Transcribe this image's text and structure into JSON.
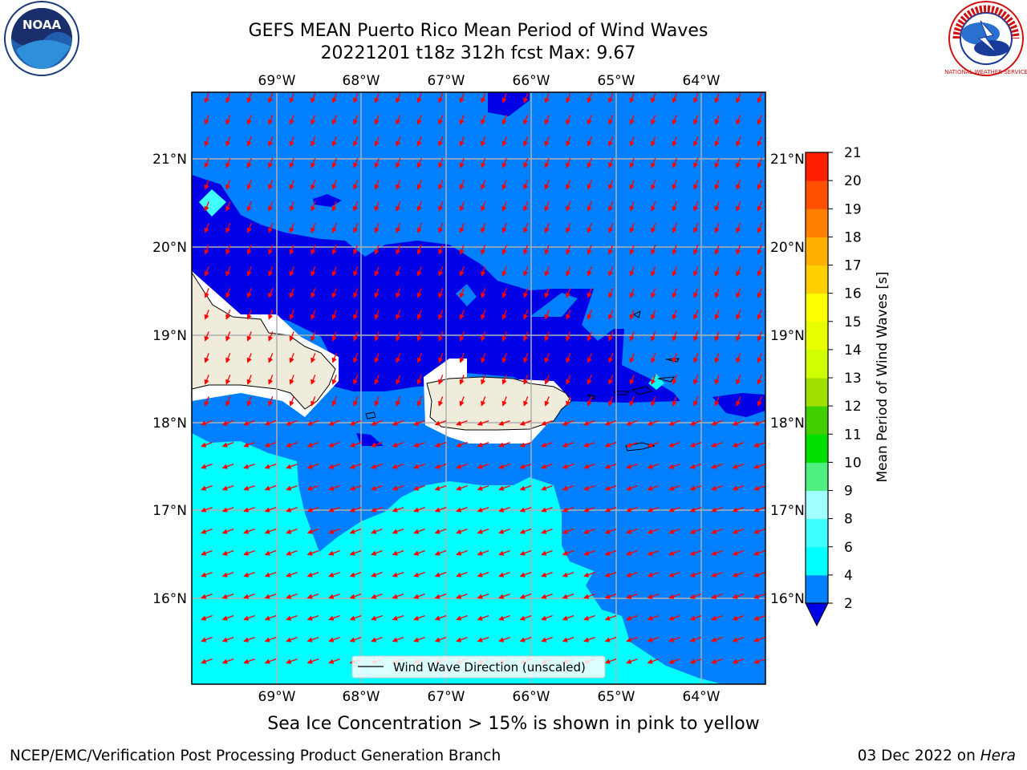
{
  "header": {
    "title_line1": "GEFS MEAN Puerto Rico Mean Period of Wind Waves",
    "title_line2": "20221201 t18z 312h fcst   Max: 9.67"
  },
  "subtitle": "Sea Ice Concentration > 15% is shown in pink to yellow",
  "footer": {
    "left": "NCEP/EMC/Verification Post Processing Product Generation Branch",
    "date": "03 Dec 2022 on ",
    "machine": "Hera"
  },
  "logos": {
    "left": {
      "icon": "noaa-logo-icon",
      "text": "NOAA"
    },
    "right": {
      "icon": "nws-logo-icon",
      "text": "NATIONAL WEATHER SERVICE"
    }
  },
  "map": {
    "lon_labels": [
      "69°W",
      "68°W",
      "67°W",
      "66°W",
      "65°W",
      "64°W"
    ],
    "lat_labels": [
      "21°N",
      "20°N",
      "19°N",
      "18°N",
      "17°N",
      "16°N"
    ],
    "lon_range": [
      -70.0,
      -63.25
    ],
    "lat_range": [
      15.0,
      21.75
    ],
    "legend_label": "Wind Wave Direction (unscaled)",
    "arrow_color": "#ff0000",
    "land_color": "#efecdc",
    "fill_colors": {
      "2-4": "#0080ff",
      "4-6": "#00ffff",
      "under-2": "#0000e6"
    }
  },
  "colorbar": {
    "label": "Mean Period of Wind Waves [s]",
    "ticks": [
      "2",
      "4",
      "6",
      "8",
      "9",
      "10",
      "11",
      "12",
      "13",
      "14",
      "15",
      "16",
      "17",
      "18",
      "19",
      "20",
      "21"
    ],
    "colors": [
      "#0080ff",
      "#00ffff",
      "#40ffff",
      "#a0ffff",
      "#50f080",
      "#00e000",
      "#40d000",
      "#a0e000",
      "#d0ff00",
      "#e8ff00",
      "#ffff00",
      "#ffd000",
      "#ffb000",
      "#ff8000",
      "#ff5000",
      "#ff2000"
    ],
    "extend_color": "#0000e6"
  }
}
